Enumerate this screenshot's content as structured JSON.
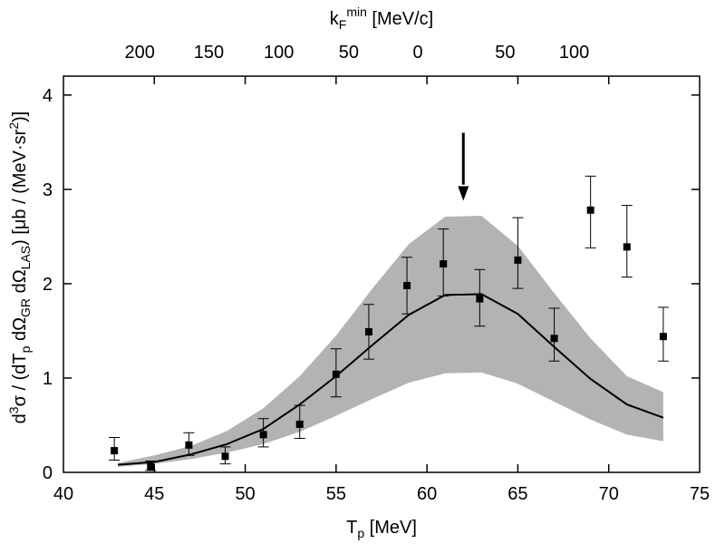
{
  "chart_data": {
    "type": "scatter",
    "xlabel": "T",
    "xlabel_sub": "p",
    "xlabel_unit": " [MeV]",
    "ylabel_parts": {
      "d": "d",
      "sup3": "3",
      "sigma": "σ / (dT",
      "sub_p": "p",
      "mid1": " dΩ",
      "sub_gr": "GR",
      "mid2": " dΩ",
      "sub_las": "LAS",
      "tail": ")  [μb / (MeV·sr",
      "sup2": "2",
      "end": ")]"
    },
    "top_label": "k",
    "top_label_sub": "F",
    "top_label_sup": "min",
    "top_label_unit": " [MeV/c]",
    "xlim": [
      40,
      75
    ],
    "ylim": [
      0,
      4.2
    ],
    "x_ticks": [
      "40",
      "45",
      "50",
      "55",
      "60",
      "65",
      "70",
      "75"
    ],
    "y_ticks": [
      "0",
      "1",
      "2",
      "3",
      "4"
    ],
    "top_ticks": [
      {
        "label": "200",
        "T": 44.2
      },
      {
        "label": "150",
        "T": 48.0
      },
      {
        "label": "100",
        "T": 51.85
      },
      {
        "label": "50",
        "T": 55.7
      },
      {
        "label": "0",
        "T": 59.5
      },
      {
        "label": "50",
        "T": 64.3
      },
      {
        "label": "100",
        "T": 68.1
      }
    ],
    "arrow_x": 62.0,
    "series": [
      {
        "kind": "points_with_errors",
        "x": [
          42.8,
          44.8,
          46.9,
          48.9,
          51.0,
          53.0,
          55.0,
          56.8,
          58.9,
          60.9,
          62.9,
          65.0,
          67.0,
          69.0,
          71.0,
          73.0
        ],
        "y": [
          0.23,
          0.06,
          0.29,
          0.17,
          0.4,
          0.51,
          1.04,
          1.49,
          1.98,
          2.21,
          1.84,
          2.25,
          1.42,
          2.78,
          2.39,
          1.44
        ],
        "err_low": [
          0.1,
          0.04,
          0.11,
          0.08,
          0.13,
          0.15,
          0.24,
          0.29,
          0.3,
          0.34,
          0.29,
          0.3,
          0.24,
          0.4,
          0.32,
          0.26
        ],
        "err_high": [
          0.14,
          0.06,
          0.13,
          0.1,
          0.17,
          0.2,
          0.27,
          0.29,
          0.3,
          0.37,
          0.31,
          0.45,
          0.32,
          0.36,
          0.44,
          0.31
        ]
      },
      {
        "kind": "line",
        "x": [
          43,
          45,
          47,
          49,
          51,
          53,
          55,
          57,
          59,
          61,
          63,
          65,
          67,
          69,
          71,
          73
        ],
        "y": [
          0.08,
          0.11,
          0.19,
          0.3,
          0.46,
          0.72,
          1.02,
          1.35,
          1.67,
          1.88,
          1.89,
          1.68,
          1.33,
          0.99,
          0.72,
          0.58
        ]
      },
      {
        "kind": "band",
        "x": [
          43,
          45,
          47,
          49,
          51,
          53,
          55,
          57,
          59,
          61,
          63,
          65,
          67,
          69,
          71,
          73
        ],
        "upper": [
          0.1,
          0.18,
          0.28,
          0.44,
          0.68,
          1.02,
          1.45,
          1.95,
          2.42,
          2.71,
          2.72,
          2.4,
          1.9,
          1.42,
          1.02,
          0.85
        ],
        "lower": [
          0.06,
          0.09,
          0.14,
          0.21,
          0.3,
          0.43,
          0.6,
          0.78,
          0.95,
          1.05,
          1.06,
          0.94,
          0.75,
          0.56,
          0.4,
          0.33
        ]
      }
    ]
  }
}
